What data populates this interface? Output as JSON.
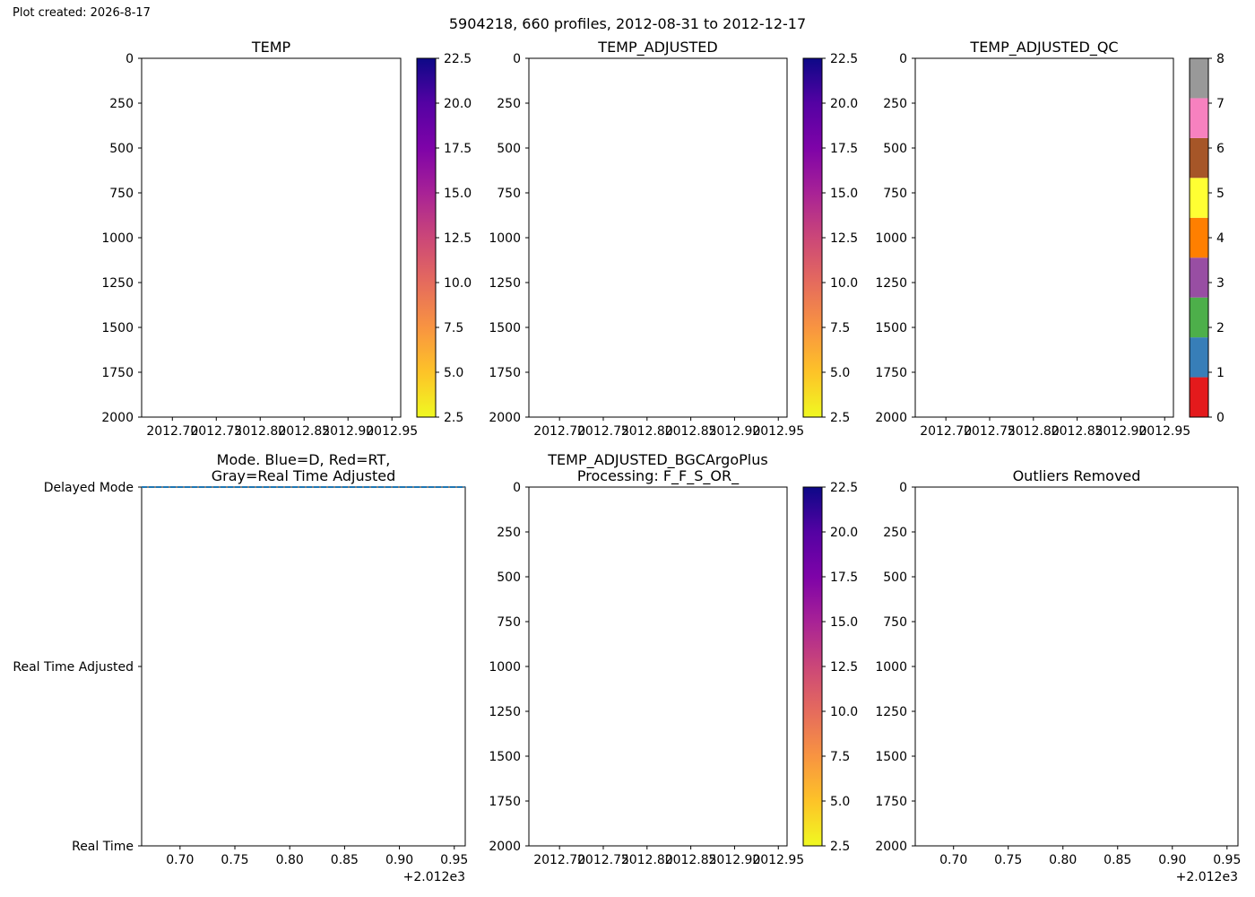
{
  "figure": {
    "created": "Plot created: 2026-8-17",
    "suptitle": "5904218, 660 profiles, 2012-08-31 to 2012-12-17"
  },
  "colors": {
    "frame": "#000000",
    "background": "#ffffff",
    "mode_line": "#1f77b4",
    "temp_cmap": [
      "#f0f921",
      "#fdc328",
      "#f89441",
      "#e56b5d",
      "#cb4778",
      "#a82296",
      "#7e03a8",
      "#5402a3",
      "#0d0887"
    ],
    "qc_colors": [
      "#e41a1c",
      "#377eb8",
      "#4daf4a",
      "#984ea3",
      "#ff7f00",
      "#ffff33",
      "#a65628",
      "#f781bf",
      "#999999"
    ]
  },
  "chart_data": [
    {
      "id": "temp",
      "type": "heatmap",
      "title": "TEMP",
      "xlabel": "",
      "ylabel": "",
      "xlim": [
        2012.665,
        2012.96
      ],
      "ylim": [
        2000,
        0
      ],
      "x_ticks": [
        2012.7,
        2012.75,
        2012.8,
        2012.85,
        2012.9,
        2012.95
      ],
      "x_tick_labels": [
        "2012.70",
        "2012.75",
        "2012.80",
        "2012.85",
        "2012.90",
        "2012.95"
      ],
      "y_ticks": [
        0,
        250,
        500,
        750,
        1000,
        1250,
        1500,
        1750,
        2000
      ],
      "y_tick_labels": [
        "0",
        "250",
        "500",
        "750",
        "1000",
        "1250",
        "1500",
        "1750",
        "2000"
      ],
      "values": [],
      "colorbar": {
        "range": [
          2.5,
          22.5
        ],
        "ticks": [
          2.5,
          5.0,
          7.5,
          10.0,
          12.5,
          15.0,
          17.5,
          20.0,
          22.5
        ],
        "tick_labels": [
          "2.5",
          "5.0",
          "7.5",
          "10.0",
          "12.5",
          "15.0",
          "17.5",
          "20.0",
          "22.5"
        ]
      }
    },
    {
      "id": "temp_adjusted",
      "type": "heatmap",
      "title": "TEMP_ADJUSTED",
      "xlabel": "",
      "ylabel": "",
      "xlim": [
        2012.665,
        2012.96
      ],
      "ylim": [
        2000,
        0
      ],
      "x_ticks": [
        2012.7,
        2012.75,
        2012.8,
        2012.85,
        2012.9,
        2012.95
      ],
      "x_tick_labels": [
        "2012.70",
        "2012.75",
        "2012.80",
        "2012.85",
        "2012.90",
        "2012.95"
      ],
      "y_ticks": [
        0,
        250,
        500,
        750,
        1000,
        1250,
        1500,
        1750,
        2000
      ],
      "y_tick_labels": [
        "0",
        "250",
        "500",
        "750",
        "1000",
        "1250",
        "1500",
        "1750",
        "2000"
      ],
      "values": [],
      "colorbar": {
        "range": [
          2.5,
          22.5
        ],
        "ticks": [
          2.5,
          5.0,
          7.5,
          10.0,
          12.5,
          15.0,
          17.5,
          20.0,
          22.5
        ],
        "tick_labels": [
          "2.5",
          "5.0",
          "7.5",
          "10.0",
          "12.5",
          "15.0",
          "17.5",
          "20.0",
          "22.5"
        ]
      }
    },
    {
      "id": "temp_adjusted_qc",
      "type": "heatmap",
      "title": "TEMP_ADJUSTED_QC",
      "xlabel": "",
      "ylabel": "",
      "xlim": [
        2012.665,
        2012.96
      ],
      "ylim": [
        2000,
        0
      ],
      "x_ticks": [
        2012.7,
        2012.75,
        2012.8,
        2012.85,
        2012.9,
        2012.95
      ],
      "x_tick_labels": [
        "2012.70",
        "2012.75",
        "2012.80",
        "2012.85",
        "2012.90",
        "2012.95"
      ],
      "y_ticks": [
        0,
        250,
        500,
        750,
        1000,
        1250,
        1500,
        1750,
        2000
      ],
      "y_tick_labels": [
        "0",
        "250",
        "500",
        "750",
        "1000",
        "1250",
        "1500",
        "1750",
        "2000"
      ],
      "values": [],
      "colorbar": {
        "range": [
          0,
          8
        ],
        "discrete": true,
        "ticks": [
          0,
          1,
          2,
          3,
          4,
          5,
          6,
          7,
          8
        ],
        "tick_labels": [
          "0",
          "1",
          "2",
          "3",
          "4",
          "5",
          "6",
          "7",
          "8"
        ]
      }
    },
    {
      "id": "mode",
      "type": "line",
      "title": "Mode. Blue=D, Red=RT,\nGray=Real Time Adjusted",
      "xlabel": "",
      "ylabel": "",
      "xlim": [
        2012.665,
        2012.96
      ],
      "ylim": [
        0,
        2
      ],
      "x_ticks": [
        2012.7,
        2012.75,
        2012.8,
        2012.85,
        2012.9,
        2012.95
      ],
      "x_tick_labels": [
        "0.70",
        "0.75",
        "0.80",
        "0.85",
        "0.90",
        "0.95"
      ],
      "x_offset_label": "+2.012e3",
      "y_ticks": [
        0,
        1,
        2
      ],
      "y_tick_labels": [
        "Real Time",
        "Real Time Adjusted",
        "Delayed Mode"
      ],
      "series": [
        {
          "x": [
            2012.665,
            2012.96
          ],
          "y": [
            2,
            2
          ],
          "style": "dashed"
        }
      ]
    },
    {
      "id": "temp_bgc",
      "type": "heatmap",
      "title": "TEMP_ADJUSTED_BGCArgoPlus\nProcessing: F_F_S_OR_",
      "xlabel": "",
      "ylabel": "",
      "xlim": [
        2012.665,
        2012.96
      ],
      "ylim": [
        2000,
        0
      ],
      "x_ticks": [
        2012.7,
        2012.75,
        2012.8,
        2012.85,
        2012.9,
        2012.95
      ],
      "x_tick_labels": [
        "2012.70",
        "2012.75",
        "2012.80",
        "2012.85",
        "2012.90",
        "2012.95"
      ],
      "y_ticks": [
        0,
        250,
        500,
        750,
        1000,
        1250,
        1500,
        1750,
        2000
      ],
      "y_tick_labels": [
        "0",
        "250",
        "500",
        "750",
        "1000",
        "1250",
        "1500",
        "1750",
        "2000"
      ],
      "values": [],
      "colorbar": {
        "range": [
          2.5,
          22.5
        ],
        "ticks": [
          2.5,
          5.0,
          7.5,
          10.0,
          12.5,
          15.0,
          17.5,
          20.0,
          22.5
        ],
        "tick_labels": [
          "2.5",
          "5.0",
          "7.5",
          "10.0",
          "12.5",
          "15.0",
          "17.5",
          "20.0",
          "22.5"
        ]
      }
    },
    {
      "id": "outliers",
      "type": "scatter",
      "title": "Outliers Removed",
      "xlabel": "",
      "ylabel": "",
      "xlim": [
        2012.665,
        2012.96
      ],
      "ylim": [
        2000,
        0
      ],
      "x_ticks": [
        2012.7,
        2012.75,
        2012.8,
        2012.85,
        2012.9,
        2012.95
      ],
      "x_tick_labels": [
        "0.70",
        "0.75",
        "0.80",
        "0.85",
        "0.90",
        "0.95"
      ],
      "x_offset_label": "+2.012e3",
      "y_ticks": [
        0,
        250,
        500,
        750,
        1000,
        1250,
        1500,
        1750,
        2000
      ],
      "y_tick_labels": [
        "0",
        "250",
        "500",
        "750",
        "1000",
        "1250",
        "1500",
        "1750",
        "2000"
      ],
      "series": []
    }
  ]
}
